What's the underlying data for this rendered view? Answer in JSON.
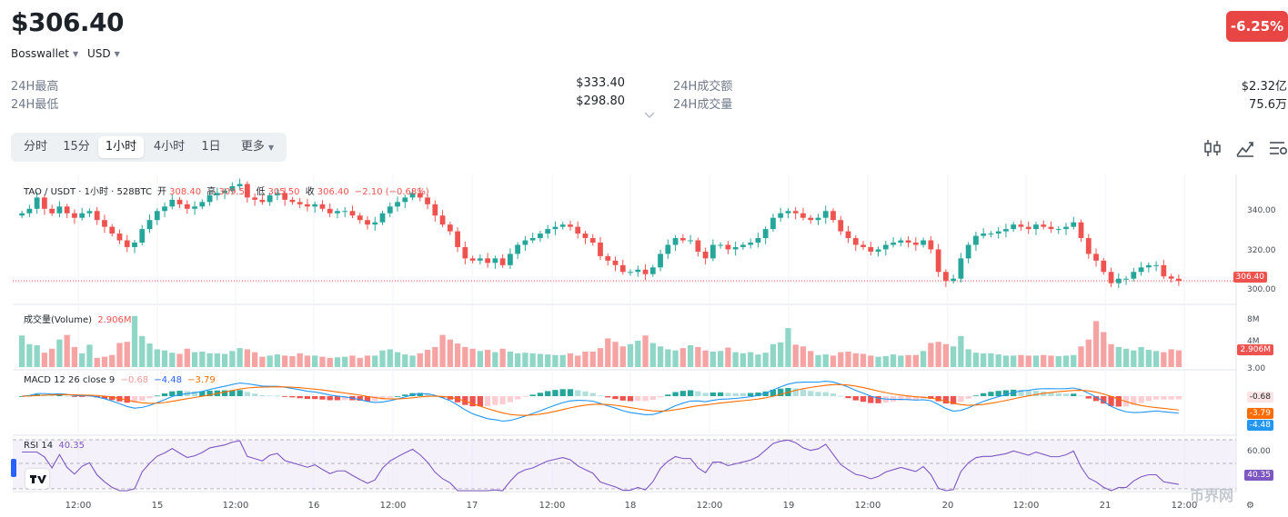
{
  "header": {
    "price": "$306.40",
    "change": "-6.25%",
    "wallet": "Bosswallet",
    "currency": "USD"
  },
  "stats": {
    "high_label": "24H最高",
    "high_value": "$333.40",
    "low_label": "24H最低",
    "low_value": "$298.80",
    "turnover_label": "24H成交额",
    "turnover_value": "$2.32亿",
    "volume_label": "24H成交量",
    "volume_value": "75.6万"
  },
  "timeframes": [
    "分时",
    "15分",
    "1小时",
    "4小时",
    "1日",
    "更多"
  ],
  "active_timeframe": "1小时",
  "tools": [
    "candles-icon",
    "indicator-icon",
    "settings-icon"
  ],
  "colors": {
    "up": "#26a69a",
    "down": "#ef5350",
    "badge": "#e84545",
    "macd": "#2962ff",
    "signal": "#ff6d00",
    "rsi": "#7e57c2"
  },
  "chart_data": [
    {
      "type": "candlestick",
      "title": "TAO / USDT · 1小时 · 528BTC",
      "legend": {
        "open_label": "开",
        "open": "308.40",
        "high_label": "高",
        "high": "309.50",
        "low_label": "低",
        "low": "305.50",
        "close_label": "收",
        "close": "306.40",
        "change": "−2.10 (−0.68%)"
      },
      "y_ticks": [
        "340.00",
        "320.00",
        "300.00"
      ],
      "ylim": [
        296,
        350
      ],
      "last_price_tag": "306.40",
      "x_ticks": [
        "12:00",
        "15",
        "12:00",
        "16",
        "12:00",
        "17",
        "12:00",
        "18",
        "12:00",
        "19",
        "12:00",
        "20",
        "12:00",
        "21",
        "12:00"
      ],
      "close_values": [
        336,
        338,
        343,
        338,
        336,
        339,
        336,
        334,
        336,
        337,
        333,
        330,
        327,
        324,
        321,
        323,
        329,
        333,
        337,
        339,
        342,
        340,
        338,
        339,
        341,
        344,
        345,
        346,
        348,
        349,
        343,
        342,
        341,
        344,
        345,
        342,
        341,
        340,
        339,
        340,
        338,
        336,
        337,
        337,
        335,
        333,
        331,
        332,
        336,
        339,
        341,
        343,
        345,
        343,
        340,
        335,
        331,
        328,
        321,
        316,
        315,
        316,
        314,
        316,
        313,
        318,
        322,
        324,
        325,
        327,
        329,
        330,
        331,
        330,
        327,
        325,
        323,
        317,
        315,
        313,
        310,
        310,
        311,
        309,
        312,
        318,
        322,
        325,
        324,
        324,
        319,
        316,
        322,
        322,
        320,
        321,
        322,
        323,
        325,
        329,
        334,
        336,
        337,
        336,
        334,
        333,
        334,
        337,
        333,
        328,
        325,
        322,
        321,
        319,
        320,
        322,
        323,
        324,
        323,
        322,
        324,
        320,
        310,
        306,
        307,
        316,
        322,
        326,
        327,
        327,
        328,
        329,
        331,
        330,
        329,
        331,
        330,
        329,
        329,
        330,
        332,
        325,
        318,
        315,
        310,
        305,
        307,
        307,
        310,
        312,
        313,
        313,
        308,
        307,
        306
      ]
    },
    {
      "type": "bar",
      "title": "成交量(Volume)",
      "last_value": "2.906M",
      "y_ticks": [
        "8M",
        "4M"
      ],
      "values": [
        5.5,
        4,
        3.8,
        2.5,
        3.2,
        4.8,
        5.6,
        3.5,
        2.4,
        3.9,
        1.6,
        1.8,
        2.1,
        4.2,
        4.4,
        8.9,
        5.4,
        4.1,
        3.1,
        2.9,
        2.5,
        2.3,
        3.2,
        2.6,
        2.7,
        2.4,
        2.4,
        2.3,
        2.8,
        3.3,
        3.1,
        2.6,
        1.8,
        2.0,
        2.2,
        2.0,
        1.9,
        2.4,
        2.0,
        2.0,
        1.8,
        1.6,
        1.7,
        1.8,
        2.0,
        1.6,
        2.0,
        2.0,
        2.9,
        3.1,
        2.6,
        2.2,
        2.0,
        2.4,
        3.0,
        3.5,
        5.6,
        4.8,
        4.1,
        3.5,
        3.2,
        2.8,
        3.0,
        2.6,
        3.2,
        2.7,
        2.4,
        2.5,
        2.4,
        2.3,
        2.2,
        2.1,
        2.1,
        2.4,
        2.0,
        2.7,
        2.7,
        3.3,
        5.0,
        4.4,
        3.6,
        4.0,
        4.6,
        5.5,
        4.2,
        3.6,
        3.1,
        2.9,
        3.3,
        3.8,
        3.5,
        2.9,
        2.7,
        2.8,
        3.4,
        2.6,
        2.4,
        2.6,
        2.2,
        2.5,
        4.0,
        4.3,
        6.8,
        3.9,
        3.6,
        2.8,
        2.1,
        2.2,
        2.0,
        2.6,
        2.7,
        2.4,
        2.3,
        2.0,
        1.8,
        1.9,
        2.2,
        2.0,
        2.1,
        2.1,
        2.8,
        4.2,
        4.4,
        4.0,
        3.6,
        5.4,
        3.1,
        2.5,
        2.4,
        2.4,
        2.2,
        2.0,
        2.0,
        2.1,
        2.0,
        2.0,
        2.1,
        2.0,
        1.9,
        2.0,
        2.1,
        3.6,
        4.8,
        8.0,
        6.1,
        4.0,
        3.5,
        3.2,
        2.9,
        3.5,
        3.0,
        2.8,
        2.6,
        3.1,
        2.906
      ]
    },
    {
      "type": "line",
      "title": "MACD 12 26 close 9",
      "legend_values": [
        "−0.68",
        "−4.48",
        "−3.79"
      ],
      "y_ticks": [
        "3.00"
      ],
      "last_tags": {
        "histogram": "-0.68",
        "signal": "-3.79",
        "macd": "-4.48"
      }
    },
    {
      "type": "line",
      "title": "RSI 14",
      "last_value": "40.35",
      "y_ticks": [
        "60.00"
      ],
      "last_tag": "40.35"
    }
  ],
  "watermark": "币界网",
  "settings_glyph": "⚙"
}
